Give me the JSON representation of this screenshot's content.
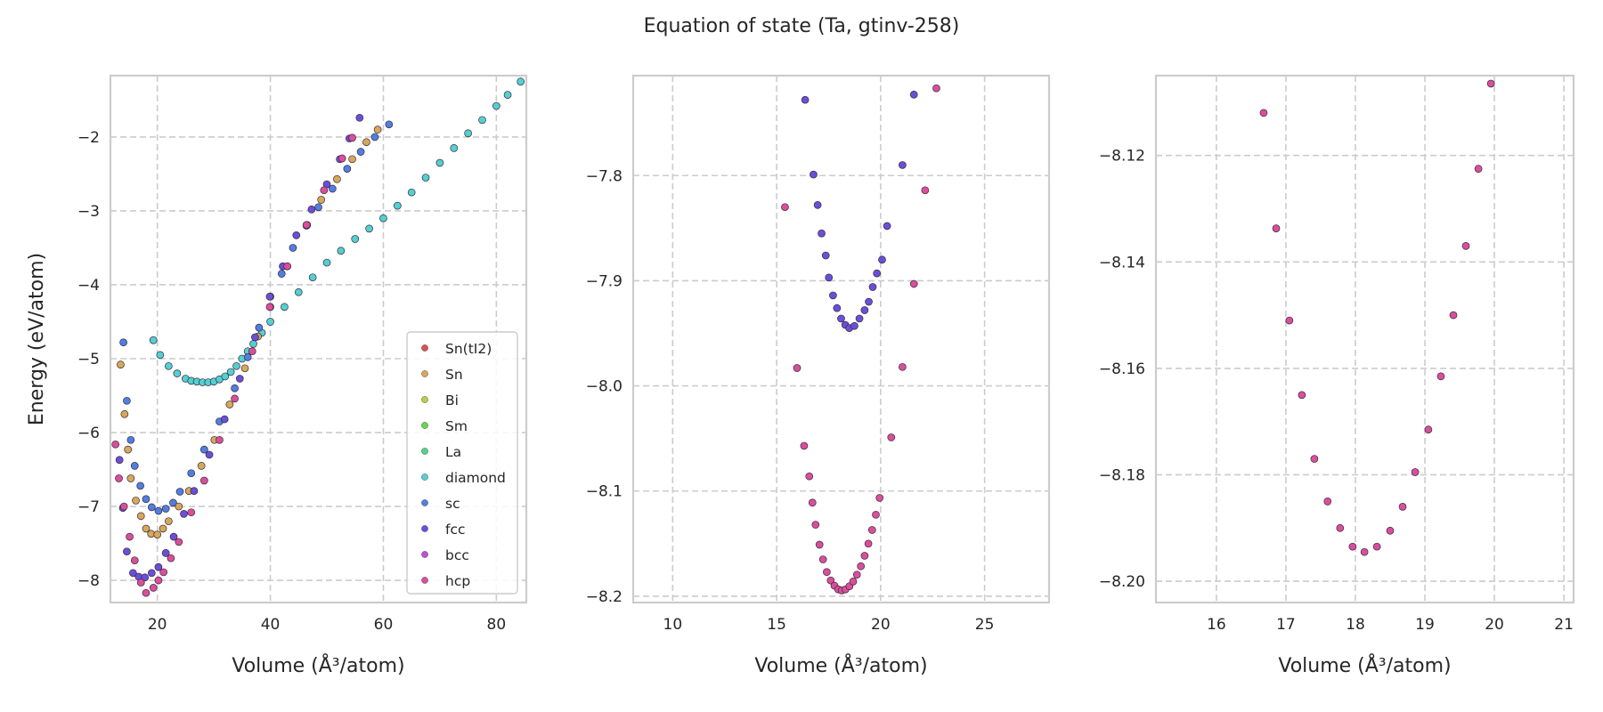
{
  "title": "Equation of state (Ta, gtinv-258)",
  "colors": {
    "Sn(tI2)": "#d9534f",
    "Sn": "#d6a85a",
    "Bi": "#b8d043",
    "Sm": "#62d84a",
    "La": "#4fd68c",
    "diamond": "#52d0d2",
    "sc": "#4f7fe0",
    "fcc": "#6a4fd8",
    "bcc": "#c04fd8",
    "hcp": "#d94f9c",
    "grid": "#cccccc",
    "spine": "#cccccc"
  },
  "chart_data": [
    {
      "type": "scatter",
      "xlabel": "Volume (Å³/atom)",
      "ylabel": "Energy (eV/atom)",
      "xlim": [
        11.7,
        85.3
      ],
      "ylim": [
        -8.3,
        -1.17
      ],
      "xticks": [
        20,
        40,
        60,
        80
      ],
      "yticks": [
        -2,
        -3,
        -4,
        -5,
        -6,
        -7,
        -8
      ],
      "grid": true,
      "legend_placement": "lower-right",
      "legend": [
        "Sn(tI2)",
        "Sn",
        "Bi",
        "Sm",
        "La",
        "diamond",
        "sc",
        "fcc",
        "bcc",
        "hcp"
      ],
      "series": [
        {
          "name": "diamond",
          "points": [
            [
              19.3,
              -4.75
            ],
            [
              20.5,
              -4.95
            ],
            [
              22,
              -5.1
            ],
            [
              23.5,
              -5.2
            ],
            [
              25,
              -5.27
            ],
            [
              26,
              -5.3
            ],
            [
              27,
              -5.31
            ],
            [
              28,
              -5.32
            ],
            [
              29,
              -5.32
            ],
            [
              30,
              -5.31
            ],
            [
              31,
              -5.28
            ],
            [
              32,
              -5.24
            ],
            [
              33,
              -5.18
            ],
            [
              34,
              -5.1
            ],
            [
              35,
              -5.0
            ],
            [
              36,
              -4.9
            ],
            [
              37,
              -4.8
            ],
            [
              38.5,
              -4.65
            ],
            [
              40,
              -4.5
            ],
            [
              42.5,
              -4.3
            ],
            [
              45,
              -4.1
            ],
            [
              47.5,
              -3.9
            ],
            [
              50,
              -3.7
            ],
            [
              52.5,
              -3.54
            ],
            [
              55,
              -3.38
            ],
            [
              57.5,
              -3.24
            ],
            [
              60,
              -3.1
            ],
            [
              62.5,
              -2.93
            ],
            [
              65,
              -2.75
            ],
            [
              67.5,
              -2.55
            ],
            [
              70,
              -2.35
            ],
            [
              72.5,
              -2.15
            ],
            [
              75,
              -1.95
            ],
            [
              77.5,
              -1.77
            ],
            [
              80,
              -1.58
            ],
            [
              82,
              -1.43
            ],
            [
              84.3,
              -1.25
            ]
          ]
        },
        {
          "name": "sc",
          "points": [
            [
              14.0,
              -4.78
            ],
            [
              14.6,
              -5.57
            ],
            [
              15.3,
              -6.1
            ],
            [
              16.0,
              -6.45
            ],
            [
              17.0,
              -6.72
            ],
            [
              18.0,
              -6.9
            ],
            [
              19.0,
              -7.01
            ],
            [
              20.2,
              -7.06
            ],
            [
              21.5,
              -7.03
            ],
            [
              22.8,
              -6.95
            ],
            [
              24,
              -6.8
            ],
            [
              26,
              -6.55
            ],
            [
              28.3,
              -6.23
            ],
            [
              31,
              -5.85
            ],
            [
              33.7,
              -5.4
            ],
            [
              36,
              -4.98
            ],
            [
              38,
              -4.58
            ],
            [
              40,
              -4.16
            ],
            [
              42,
              -3.85
            ],
            [
              44,
              -3.5
            ],
            [
              46.4,
              -3.2
            ],
            [
              48.5,
              -2.95
            ],
            [
              51,
              -2.7
            ],
            [
              53.6,
              -2.43
            ],
            [
              56,
              -2.2
            ],
            [
              58.5,
              -2.0
            ],
            [
              61,
              -1.83
            ]
          ]
        },
        {
          "name": "Sn",
          "points": [
            [
              13.5,
              -5.08
            ],
            [
              14.2,
              -5.75
            ],
            [
              14.8,
              -6.23
            ],
            [
              15.3,
              -6.62
            ],
            [
              16.2,
              -6.92
            ],
            [
              17.1,
              -7.13
            ],
            [
              18.0,
              -7.3
            ],
            [
              18.9,
              -7.37
            ],
            [
              20,
              -7.38
            ],
            [
              21,
              -7.3
            ],
            [
              22,
              -7.2
            ],
            [
              23.8,
              -7.0
            ],
            [
              25.6,
              -6.79
            ],
            [
              27.8,
              -6.45
            ],
            [
              30.1,
              -6.1
            ],
            [
              32.8,
              -5.62
            ],
            [
              35.5,
              -5.13
            ],
            [
              37.8,
              -4.7
            ],
            [
              40,
              -4.3
            ],
            [
              43,
              -3.75
            ],
            [
              46.5,
              -3.19
            ],
            [
              49,
              -2.85
            ],
            [
              51.8,
              -2.57
            ],
            [
              54.5,
              -2.3
            ],
            [
              57,
              -2.07
            ],
            [
              59,
              -1.9
            ]
          ]
        },
        {
          "name": "fcc",
          "points": [
            [
              13.3,
              -6.37
            ],
            [
              13.9,
              -7.02
            ],
            [
              14.6,
              -7.61
            ],
            [
              15.7,
              -7.9
            ],
            [
              16.7,
              -7.95
            ],
            [
              17.8,
              -7.96
            ],
            [
              19,
              -7.9
            ],
            [
              20.2,
              -7.82
            ],
            [
              21.5,
              -7.63
            ],
            [
              22.9,
              -7.41
            ],
            [
              24.7,
              -7.1
            ],
            [
              26.5,
              -6.79
            ],
            [
              29.2,
              -6.3
            ],
            [
              31.9,
              -5.82
            ],
            [
              34.6,
              -5.27
            ],
            [
              37.3,
              -4.71
            ],
            [
              39.9,
              -4.16
            ],
            [
              42.2,
              -3.75
            ],
            [
              44.6,
              -3.33
            ],
            [
              47.3,
              -2.98
            ],
            [
              50,
              -2.64
            ],
            [
              52.3,
              -2.3
            ],
            [
              54,
              -2.02
            ],
            [
              55.8,
              -1.74
            ]
          ]
        },
        {
          "name": "hcp",
          "points": [
            [
              12.6,
              -6.16
            ],
            [
              13.2,
              -6.62
            ],
            [
              14.1,
              -7.0
            ],
            [
              15.1,
              -7.41
            ],
            [
              16.0,
              -7.73
            ],
            [
              17.1,
              -8.03
            ],
            [
              18.0,
              -8.17
            ],
            [
              19.3,
              -8.1
            ],
            [
              20.2,
              -8.0
            ],
            [
              21.1,
              -7.89
            ],
            [
              22.4,
              -7.7
            ],
            [
              23.8,
              -7.48
            ],
            [
              26,
              -7.08
            ],
            [
              28.3,
              -6.65
            ],
            [
              31,
              -6.1
            ],
            [
              33.7,
              -5.54
            ],
            [
              36.8,
              -4.9
            ],
            [
              39.9,
              -4.3
            ],
            [
              43,
              -3.75
            ],
            [
              46.4,
              -3.19
            ],
            [
              49.5,
              -2.72
            ],
            [
              52.7,
              -2.29
            ],
            [
              54.5,
              -2.01
            ]
          ]
        }
      ]
    },
    {
      "type": "scatter",
      "xlabel": "Volume (Å³/atom)",
      "xlim": [
        8.1,
        28.1
      ],
      "ylim": [
        -8.206,
        -7.705
      ],
      "xticks": [
        10,
        15,
        20,
        25
      ],
      "yticks": [
        -7.8,
        -7.9,
        -8.0,
        -8.1,
        -8.2
      ],
      "grid": true,
      "series": [
        {
          "name": "fcc",
          "points": [
            [
              16.37,
              -7.728
            ],
            [
              16.77,
              -7.799
            ],
            [
              16.97,
              -7.828
            ],
            [
              17.16,
              -7.855
            ],
            [
              17.36,
              -7.876
            ],
            [
              17.51,
              -7.897
            ],
            [
              17.71,
              -7.914
            ],
            [
              17.9,
              -7.926
            ],
            [
              18.1,
              -7.936
            ],
            [
              18.3,
              -7.942
            ],
            [
              18.49,
              -7.945
            ],
            [
              18.74,
              -7.943
            ],
            [
              18.98,
              -7.936
            ],
            [
              19.23,
              -7.928
            ],
            [
              19.43,
              -7.92
            ],
            [
              19.62,
              -7.906
            ],
            [
              19.82,
              -7.893
            ],
            [
              20.07,
              -7.88
            ],
            [
              20.31,
              -7.848
            ],
            [
              21.05,
              -7.79
            ],
            [
              21.6,
              -7.723
            ]
          ]
        },
        {
          "name": "hcp",
          "points": [
            [
              15.4,
              -7.83
            ],
            [
              15.98,
              -7.983
            ],
            [
              16.32,
              -8.057
            ],
            [
              16.57,
              -8.086
            ],
            [
              16.72,
              -8.111
            ],
            [
              16.87,
              -8.132
            ],
            [
              17.06,
              -8.151
            ],
            [
              17.23,
              -8.165
            ],
            [
              17.41,
              -8.177
            ],
            [
              17.6,
              -8.185
            ],
            [
              17.78,
              -8.19
            ],
            [
              17.96,
              -8.1935
            ],
            [
              18.13,
              -8.1945
            ],
            [
              18.31,
              -8.1935
            ],
            [
              18.5,
              -8.1905
            ],
            [
              18.68,
              -8.186
            ],
            [
              18.86,
              -8.1795
            ],
            [
              19.05,
              -8.1715
            ],
            [
              19.23,
              -8.1615
            ],
            [
              19.41,
              -8.15
            ],
            [
              19.59,
              -8.137
            ],
            [
              19.77,
              -8.1225
            ],
            [
              19.95,
              -8.1065
            ],
            [
              20.51,
              -8.049
            ],
            [
              21.05,
              -7.982
            ],
            [
              21.6,
              -7.903
            ],
            [
              22.14,
              -7.814
            ],
            [
              22.68,
              -7.717
            ]
          ]
        }
      ]
    },
    {
      "type": "scatter",
      "xlabel": "Volume (Å³/atom)",
      "xlim": [
        15.13,
        21.14
      ],
      "ylim": [
        -8.204,
        -8.105
      ],
      "xticks": [
        16,
        17,
        18,
        19,
        20,
        21
      ],
      "yticks": [
        -8.12,
        -8.14,
        -8.16,
        -8.18,
        -8.2
      ],
      "grid": true,
      "series": [
        {
          "name": "hcp",
          "points": [
            [
              16.68,
              -8.112
            ],
            [
              16.86,
              -8.1337
            ],
            [
              17.05,
              -8.151
            ],
            [
              17.23,
              -8.165
            ],
            [
              17.41,
              -8.177
            ],
            [
              17.6,
              -8.185
            ],
            [
              17.78,
              -8.19
            ],
            [
              17.96,
              -8.1935
            ],
            [
              18.13,
              -8.1945
            ],
            [
              18.31,
              -8.1935
            ],
            [
              18.5,
              -8.1905
            ],
            [
              18.68,
              -8.186
            ],
            [
              18.86,
              -8.1795
            ],
            [
              19.05,
              -8.1715
            ],
            [
              19.23,
              -8.1615
            ],
            [
              19.41,
              -8.15
            ],
            [
              19.59,
              -8.137
            ],
            [
              19.77,
              -8.1225
            ],
            [
              19.95,
              -8.1065
            ]
          ]
        }
      ]
    }
  ]
}
